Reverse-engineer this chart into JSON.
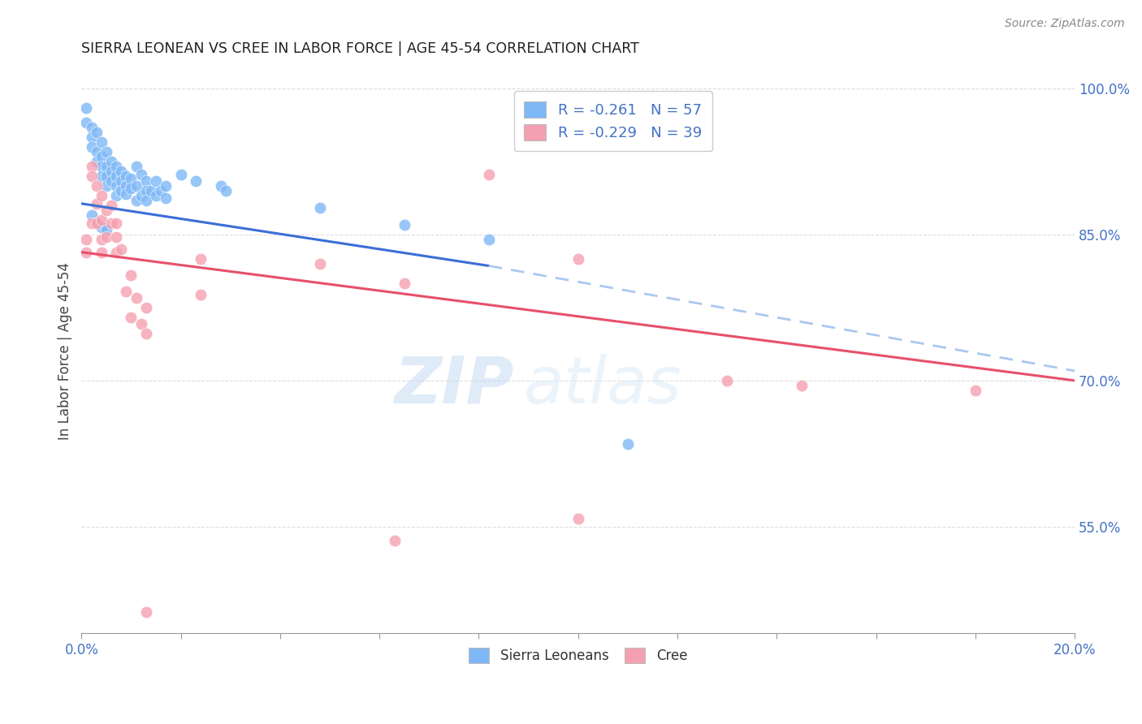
{
  "title": "SIERRA LEONEAN VS CREE IN LABOR FORCE | AGE 45-54 CORRELATION CHART",
  "source": "Source: ZipAtlas.com",
  "ylabel": "In Labor Force | Age 45-54",
  "xlim": [
    0.0,
    0.2
  ],
  "ylim": [
    0.44,
    1.02
  ],
  "yticks": [
    0.55,
    0.7,
    0.85,
    1.0
  ],
  "ytick_labels": [
    "55.0%",
    "70.0%",
    "85.0%",
    "100.0%"
  ],
  "legend_r1": "-0.261",
  "legend_n1": "57",
  "legend_r2": "-0.229",
  "legend_n2": "39",
  "blue_color": "#7eb8f7",
  "pink_color": "#f5a0b0",
  "blue_line_color": "#3a6fd8",
  "pink_line_color": "#e8506a",
  "dashed_line_color": "#aac8f0",
  "blue_line_solid": [
    [
      0.0,
      0.882
    ],
    [
      0.082,
      0.818
    ]
  ],
  "blue_line_dashed": [
    [
      0.082,
      0.818
    ],
    [
      0.2,
      0.71
    ]
  ],
  "pink_line": [
    [
      0.0,
      0.832
    ],
    [
      0.2,
      0.7
    ]
  ],
  "blue_scatter": [
    [
      0.001,
      0.98
    ],
    [
      0.001,
      0.965
    ],
    [
      0.002,
      0.96
    ],
    [
      0.002,
      0.95
    ],
    [
      0.002,
      0.94
    ],
    [
      0.003,
      0.955
    ],
    [
      0.003,
      0.935
    ],
    [
      0.003,
      0.925
    ],
    [
      0.004,
      0.945
    ],
    [
      0.004,
      0.93
    ],
    [
      0.004,
      0.92
    ],
    [
      0.004,
      0.91
    ],
    [
      0.005,
      0.935
    ],
    [
      0.005,
      0.92
    ],
    [
      0.005,
      0.91
    ],
    [
      0.005,
      0.9
    ],
    [
      0.006,
      0.925
    ],
    [
      0.006,
      0.915
    ],
    [
      0.006,
      0.905
    ],
    [
      0.007,
      0.92
    ],
    [
      0.007,
      0.91
    ],
    [
      0.007,
      0.9
    ],
    [
      0.007,
      0.89
    ],
    [
      0.008,
      0.915
    ],
    [
      0.008,
      0.905
    ],
    [
      0.008,
      0.895
    ],
    [
      0.009,
      0.91
    ],
    [
      0.009,
      0.9
    ],
    [
      0.009,
      0.892
    ],
    [
      0.01,
      0.908
    ],
    [
      0.01,
      0.898
    ],
    [
      0.011,
      0.92
    ],
    [
      0.011,
      0.9
    ],
    [
      0.011,
      0.885
    ],
    [
      0.012,
      0.912
    ],
    [
      0.012,
      0.89
    ],
    [
      0.013,
      0.905
    ],
    [
      0.013,
      0.895
    ],
    [
      0.013,
      0.885
    ],
    [
      0.014,
      0.895
    ],
    [
      0.015,
      0.905
    ],
    [
      0.015,
      0.89
    ],
    [
      0.016,
      0.895
    ],
    [
      0.017,
      0.9
    ],
    [
      0.017,
      0.888
    ],
    [
      0.02,
      0.912
    ],
    [
      0.023,
      0.905
    ],
    [
      0.028,
      0.9
    ],
    [
      0.029,
      0.895
    ],
    [
      0.048,
      0.878
    ],
    [
      0.065,
      0.86
    ],
    [
      0.082,
      0.845
    ],
    [
      0.11,
      0.635
    ],
    [
      0.002,
      0.87
    ],
    [
      0.003,
      0.862
    ],
    [
      0.004,
      0.858
    ],
    [
      0.005,
      0.855
    ]
  ],
  "pink_scatter": [
    [
      0.001,
      0.845
    ],
    [
      0.001,
      0.832
    ],
    [
      0.002,
      0.92
    ],
    [
      0.002,
      0.91
    ],
    [
      0.002,
      0.862
    ],
    [
      0.003,
      0.9
    ],
    [
      0.003,
      0.882
    ],
    [
      0.003,
      0.862
    ],
    [
      0.004,
      0.89
    ],
    [
      0.004,
      0.865
    ],
    [
      0.004,
      0.845
    ],
    [
      0.004,
      0.832
    ],
    [
      0.005,
      0.875
    ],
    [
      0.005,
      0.848
    ],
    [
      0.006,
      0.88
    ],
    [
      0.006,
      0.862
    ],
    [
      0.007,
      0.862
    ],
    [
      0.007,
      0.848
    ],
    [
      0.007,
      0.832
    ],
    [
      0.008,
      0.835
    ],
    [
      0.009,
      0.792
    ],
    [
      0.01,
      0.808
    ],
    [
      0.01,
      0.765
    ],
    [
      0.011,
      0.785
    ],
    [
      0.012,
      0.758
    ],
    [
      0.013,
      0.775
    ],
    [
      0.013,
      0.748
    ],
    [
      0.024,
      0.825
    ],
    [
      0.024,
      0.788
    ],
    [
      0.048,
      0.82
    ],
    [
      0.065,
      0.8
    ],
    [
      0.082,
      0.912
    ],
    [
      0.1,
      0.825
    ],
    [
      0.13,
      0.7
    ],
    [
      0.18,
      0.69
    ],
    [
      0.013,
      0.462
    ],
    [
      0.063,
      0.535
    ],
    [
      0.1,
      0.558
    ],
    [
      0.145,
      0.695
    ]
  ],
  "watermark_zip": "ZIP",
  "watermark_atlas": "atlas",
  "background_color": "#ffffff",
  "grid_color": "#dddddd"
}
